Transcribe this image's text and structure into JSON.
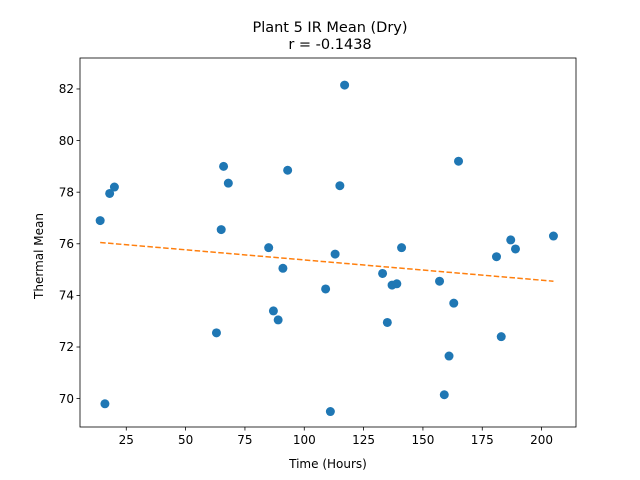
{
  "chart_data": {
    "type": "scatter",
    "title": "Plant 5 IR Mean (Dry)",
    "subtitle": "r = -0.1438",
    "xlabel": "Time (Hours)",
    "ylabel": "Thermal Mean",
    "xlim": [
      5.5,
      214.5
    ],
    "ylim": [
      68.9,
      83.2
    ],
    "xticks": [
      25,
      50,
      75,
      100,
      125,
      150,
      175,
      200
    ],
    "yticks": [
      70,
      72,
      74,
      76,
      78,
      80,
      82
    ],
    "grid": false,
    "point_color": "#1f77b4",
    "trend_color": "#ff7f0e",
    "points": [
      {
        "x": 14,
        "y": 76.9
      },
      {
        "x": 16,
        "y": 69.8
      },
      {
        "x": 18,
        "y": 77.95
      },
      {
        "x": 20,
        "y": 78.2
      },
      {
        "x": 63,
        "y": 72.55
      },
      {
        "x": 65,
        "y": 76.55
      },
      {
        "x": 66,
        "y": 79.0
      },
      {
        "x": 68,
        "y": 78.35
      },
      {
        "x": 85,
        "y": 75.85
      },
      {
        "x": 87,
        "y": 73.4
      },
      {
        "x": 89,
        "y": 73.05
      },
      {
        "x": 91,
        "y": 75.05
      },
      {
        "x": 93,
        "y": 78.85
      },
      {
        "x": 109,
        "y": 74.25
      },
      {
        "x": 111,
        "y": 69.5
      },
      {
        "x": 113,
        "y": 75.6
      },
      {
        "x": 115,
        "y": 78.25
      },
      {
        "x": 117,
        "y": 82.15
      },
      {
        "x": 133,
        "y": 74.85
      },
      {
        "x": 135,
        "y": 72.95
      },
      {
        "x": 137,
        "y": 74.4
      },
      {
        "x": 139,
        "y": 74.45
      },
      {
        "x": 141,
        "y": 75.85
      },
      {
        "x": 157,
        "y": 74.55
      },
      {
        "x": 159,
        "y": 70.15
      },
      {
        "x": 161,
        "y": 71.65
      },
      {
        "x": 163,
        "y": 73.7
      },
      {
        "x": 165,
        "y": 79.2
      },
      {
        "x": 181,
        "y": 75.5
      },
      {
        "x": 183,
        "y": 72.4
      },
      {
        "x": 187,
        "y": 76.15
      },
      {
        "x": 189,
        "y": 75.8
      },
      {
        "x": 205,
        "y": 76.3
      }
    ],
    "trend_line": {
      "x": [
        14,
        205
      ],
      "y": [
        76.05,
        74.55
      ]
    }
  }
}
